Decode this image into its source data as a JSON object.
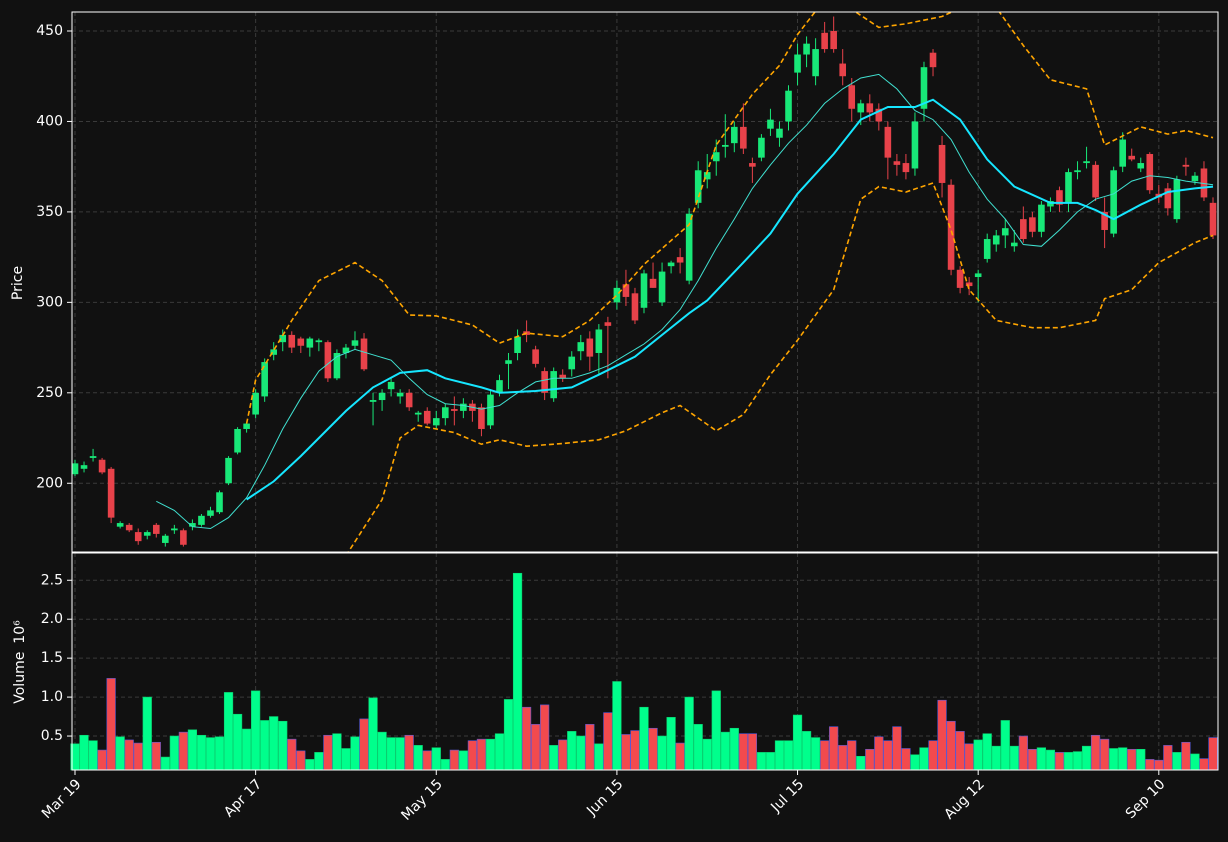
{
  "chart_data": {
    "type": "candlestick",
    "categories": [
      "Mar 19",
      null,
      null,
      null,
      null,
      null,
      null,
      null,
      null,
      null,
      null,
      null,
      null,
      null,
      null,
      null,
      null,
      null,
      null,
      null,
      "Apr 17",
      null,
      null,
      null,
      null,
      null,
      null,
      null,
      null,
      null,
      null,
      null,
      null,
      null,
      null,
      null,
      null,
      null,
      null,
      null,
      "May 15",
      null,
      null,
      null,
      null,
      null,
      null,
      null,
      null,
      null,
      null,
      null,
      null,
      null,
      null,
      null,
      null,
      null,
      null,
      null,
      "Jun 15",
      null,
      null,
      null,
      null,
      null,
      null,
      null,
      null,
      null,
      null,
      null,
      null,
      null,
      null,
      null,
      null,
      null,
      null,
      null,
      "Jul 15",
      null,
      null,
      null,
      null,
      null,
      null,
      null,
      null,
      null,
      null,
      null,
      null,
      null,
      null,
      null,
      null,
      null,
      null,
      null,
      "Aug 12",
      null,
      null,
      null,
      null,
      null,
      null,
      null,
      null,
      null,
      null,
      null,
      null,
      null,
      null,
      null,
      null,
      null,
      null,
      null,
      "Sep 10",
      null,
      null,
      null,
      null,
      null,
      null
    ],
    "open": [
      205,
      208,
      214,
      213,
      208,
      176,
      177,
      173,
      171,
      177,
      167,
      174,
      174,
      176,
      177,
      182,
      184,
      200,
      217,
      230,
      238,
      248,
      271,
      278,
      282,
      280,
      275,
      278,
      278,
      258,
      272,
      276,
      280,
      245,
      246,
      252,
      248,
      250,
      238,
      240,
      232,
      236,
      241,
      240,
      244,
      242,
      232,
      250,
      266,
      272,
      284,
      274,
      262,
      247,
      260,
      263,
      273,
      280,
      272,
      289,
      300,
      310,
      305,
      297,
      313,
      300,
      320,
      325,
      312,
      355,
      368,
      378,
      386,
      388,
      397,
      377,
      380,
      396,
      391,
      400,
      427,
      437,
      425,
      449,
      450,
      432,
      420,
      405,
      410,
      407,
      397,
      378,
      377,
      374,
      407,
      438,
      387,
      365,
      318,
      311,
      314,
      324,
      332,
      337,
      331,
      346,
      347,
      339,
      353,
      362,
      355,
      372,
      377,
      376,
      350,
      338,
      375,
      381,
      374,
      382,
      360,
      363,
      346,
      376,
      367,
      374,
      355
    ],
    "high": [
      213,
      212,
      219,
      214,
      209,
      179,
      178,
      175,
      174,
      178,
      172,
      177,
      175,
      180,
      183,
      187,
      196,
      215,
      231,
      234,
      252,
      269,
      278,
      285,
      284,
      281,
      281,
      280,
      279,
      274,
      277,
      284,
      283,
      250,
      252,
      258,
      252,
      252,
      240,
      242,
      240,
      244,
      248,
      247,
      246,
      244,
      252,
      260,
      272,
      285,
      290,
      276,
      264,
      264,
      263,
      273,
      282,
      284,
      288,
      292,
      312,
      318,
      308,
      318,
      322,
      322,
      323,
      330,
      352,
      378,
      382,
      390,
      404,
      400,
      410,
      380,
      393,
      407,
      400,
      420,
      443,
      447,
      446,
      455,
      458,
      440,
      424,
      412,
      415,
      410,
      400,
      382,
      382,
      405,
      433,
      440,
      392,
      368,
      320,
      314,
      318,
      338,
      340,
      346,
      340,
      353,
      350,
      356,
      358,
      364,
      374,
      378,
      386,
      378,
      358,
      375,
      394,
      385,
      380,
      383,
      365,
      366,
      370,
      380,
      372,
      378,
      358
    ],
    "low": [
      204,
      206,
      212,
      205,
      178,
      175,
      173,
      166,
      169,
      170,
      165,
      172,
      165,
      174,
      176,
      181,
      183,
      199,
      216,
      228,
      236,
      245,
      268,
      273,
      272,
      272,
      270,
      273,
      256,
      257,
      269,
      274,
      262,
      232,
      240,
      248,
      244,
      240,
      234,
      232,
      230,
      232,
      232,
      236,
      234,
      226,
      230,
      248,
      252,
      268,
      278,
      264,
      246,
      245,
      256,
      259,
      268,
      262,
      260,
      258,
      296,
      298,
      288,
      294,
      308,
      298,
      316,
      316,
      310,
      352,
      363,
      370,
      380,
      383,
      382,
      366,
      378,
      392,
      386,
      395,
      420,
      430,
      420,
      438,
      438,
      420,
      400,
      398,
      400,
      395,
      368,
      370,
      368,
      370,
      400,
      425,
      358,
      315,
      305,
      304,
      300,
      322,
      328,
      330,
      328,
      333,
      336,
      336,
      350,
      350,
      350,
      368,
      374,
      356,
      330,
      336,
      372,
      378,
      372,
      360,
      355,
      348,
      344,
      370,
      365,
      356,
      335
    ],
    "close": [
      211,
      210,
      215,
      206,
      181,
      178,
      174,
      168,
      173,
      172,
      171,
      175,
      166,
      178,
      182,
      185,
      195,
      214,
      230,
      233,
      250,
      267,
      274,
      282,
      275,
      276,
      280,
      279,
      258,
      272,
      275,
      279,
      263,
      246,
      250,
      256,
      250,
      242,
      239,
      233,
      236,
      242,
      240,
      244,
      240,
      230,
      249,
      257,
      268,
      281,
      282,
      266,
      250,
      262,
      258,
      270,
      278,
      270,
      285,
      287,
      308,
      303,
      290,
      316,
      308,
      317,
      322,
      322,
      349,
      373,
      372,
      383,
      387,
      397,
      385,
      375,
      391,
      401,
      396,
      417,
      437,
      443,
      440,
      440,
      440,
      425,
      407,
      410,
      405,
      400,
      380,
      376,
      372,
      400,
      430,
      430,
      366,
      318,
      308,
      309,
      316,
      335,
      337,
      341,
      333,
      335,
      339,
      354,
      356,
      354,
      372,
      373,
      378,
      358,
      340,
      373,
      390,
      379,
      377,
      362,
      358,
      352,
      368,
      375,
      370,
      358,
      337
    ],
    "up_color": "#18e878",
    "down_color": "#e8424a",
    "ylabel": "Price",
    "ylim": [
      162,
      460.5
    ],
    "yticks": [
      200,
      250,
      300,
      350,
      400,
      450
    ],
    "grid": true,
    "overlays": [
      {
        "color": "#40e0d0",
        "width": 1,
        "dash": false,
        "x": [
          9,
          11,
          13,
          15,
          17,
          19,
          21,
          23,
          25,
          27,
          29,
          31,
          33,
          35,
          37,
          39,
          41,
          43,
          45,
          47,
          49,
          51,
          53,
          55,
          57,
          59,
          61,
          63,
          65,
          67,
          69,
          71,
          73,
          75,
          77,
          79,
          81,
          83,
          85,
          87,
          89,
          91,
          93,
          95,
          97,
          99,
          101,
          103,
          105,
          107,
          109,
          111,
          113,
          115,
          117,
          119,
          121,
          123,
          126
        ],
        "values": [
          190,
          185,
          176,
          175,
          181,
          192,
          210,
          230,
          247,
          262,
          270,
          274,
          271,
          268,
          258,
          249,
          244,
          243,
          241,
          243,
          250,
          256,
          258,
          258,
          261,
          265,
          271,
          277,
          285,
          296,
          312,
          330,
          346,
          363,
          376,
          388,
          398,
          410,
          418,
          424,
          426,
          418,
          406,
          401,
          390,
          372,
          357,
          346,
          332,
          331,
          340,
          350,
          357,
          360,
          367,
          370,
          369,
          367,
          365
        ]
      },
      {
        "color": "#16e6ff",
        "width": 2,
        "dash": false,
        "x": [
          19,
          22,
          25,
          27,
          30,
          33,
          36,
          39,
          41,
          45,
          47,
          51,
          55,
          58,
          62,
          65,
          68,
          70,
          74,
          77,
          80,
          84,
          87,
          90,
          93,
          95,
          98,
          101,
          104,
          108,
          111,
          113,
          115,
          118,
          121,
          124,
          126
        ],
        "values": [
          191,
          201,
          215,
          225,
          240,
          253,
          261,
          262.5,
          258,
          253,
          250,
          251,
          253,
          260,
          270,
          282,
          294,
          301,
          322,
          338,
          360,
          382,
          401,
          408,
          408,
          412,
          401,
          379,
          364,
          355,
          355,
          351,
          346,
          354,
          361,
          363,
          364
        ]
      },
      {
        "color": "#ffa500",
        "width": 1.6,
        "dash": true,
        "x": [
          19,
          20,
          24,
          27,
          31,
          34,
          37,
          40,
          44,
          47,
          50,
          54,
          57,
          60,
          63,
          68,
          71,
          75,
          78,
          80,
          82,
          86,
          89,
          92,
          96,
          99,
          102,
          105,
          108,
          112,
          114,
          118,
          121,
          123,
          126
        ],
        "values": [
          233,
          257,
          290,
          312,
          322,
          312,
          293,
          292.5,
          287.5,
          277.5,
          283,
          281,
          290,
          304,
          321,
          343,
          387,
          415,
          431,
          448,
          461,
          462,
          452,
          454,
          458,
          465,
          463,
          442,
          423,
          418,
          387,
          397,
          393,
          395,
          391
        ]
      },
      {
        "color": "#ffa500",
        "width": 1.6,
        "dash": true,
        "x": [
          30,
          34,
          36,
          38,
          42,
          45,
          47,
          50,
          54,
          58,
          61,
          65,
          67,
          69,
          71,
          74,
          77,
          80,
          84,
          87,
          89,
          92,
          95,
          97,
          99,
          102,
          106,
          109,
          113,
          114,
          117,
          120,
          124,
          126
        ],
        "values": [
          160,
          191,
          225,
          232,
          228,
          221.6,
          224,
          220.5,
          222,
          224,
          229,
          239,
          243,
          236,
          229,
          238,
          260,
          279,
          307,
          357,
          364,
          361,
          366,
          340,
          307,
          290,
          286,
          286,
          290,
          302,
          307,
          322,
          333,
          337
        ]
      }
    ],
    "volume": {
      "ylabel": "Volume",
      "multiplier": "10⁶",
      "ylim": [
        0.064,
        2.85
      ],
      "yticks": [
        0.5,
        {
          "value": 1,
          "label": "1.0"
        },
        1.5,
        {
          "value": 2,
          "label": "2.0"
        },
        2.5
      ],
      "values": [
        0.4,
        0.51,
        0.44,
        0.32,
        1.24,
        0.49,
        0.45,
        0.41,
        1.0,
        0.42,
        0.23,
        0.5,
        0.55,
        0.58,
        0.51,
        0.48,
        0.49,
        1.06,
        0.78,
        0.59,
        1.08,
        0.7,
        0.75,
        0.69,
        0.46,
        0.31,
        0.2,
        0.29,
        0.51,
        0.53,
        0.34,
        0.49,
        0.72,
        0.99,
        0.55,
        0.48,
        0.48,
        0.51,
        0.38,
        0.31,
        0.35,
        0.2,
        0.32,
        0.31,
        0.44,
        0.46,
        0.46,
        0.53,
        0.97,
        2.59,
        0.87,
        0.65,
        0.9,
        0.38,
        0.45,
        0.56,
        0.5,
        0.65,
        0.4,
        0.8,
        1.2,
        0.52,
        0.57,
        0.87,
        0.6,
        0.5,
        0.74,
        0.41,
        1.0,
        0.65,
        0.46,
        1.08,
        0.55,
        0.6,
        0.53,
        0.53,
        0.29,
        0.29,
        0.44,
        0.44,
        0.77,
        0.56,
        0.48,
        0.44,
        0.62,
        0.38,
        0.44,
        0.24,
        0.33,
        0.49,
        0.44,
        0.62,
        0.34,
        0.26,
        0.35,
        0.44,
        0.96,
        0.69,
        0.56,
        0.4,
        0.45,
        0.53,
        0.37,
        0.7,
        0.37,
        0.5,
        0.33,
        0.35,
        0.32,
        0.29,
        0.29,
        0.3,
        0.37,
        0.51,
        0.46,
        0.34,
        0.35,
        0.33,
        0.33,
        0.2,
        0.19,
        0.38,
        0.29,
        0.42,
        0.27,
        0.21,
        0.48
      ]
    }
  }
}
